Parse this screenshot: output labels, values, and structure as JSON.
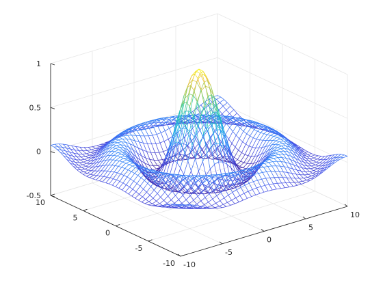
{
  "chart_data": {
    "type": "surface-mesh",
    "function": "sin(r)/r, r = sqrt(x^2 + y^2)",
    "colormap": "parula",
    "grid": true,
    "box": "off",
    "x": {
      "range": [
        -10,
        10
      ],
      "ticks": [
        -10,
        -5,
        0,
        5,
        10
      ],
      "samples": 41
    },
    "y": {
      "range": [
        -10,
        10
      ],
      "ticks": [
        -10,
        -5,
        0,
        5,
        10
      ],
      "samples": 41
    },
    "z": {
      "range": [
        -0.5,
        1
      ],
      "ticks": [
        -0.5,
        0,
        0.5,
        1
      ]
    },
    "tick_labels": {
      "x": [
        "-10",
        "-5",
        "0",
        "5",
        "10"
      ],
      "y": [
        "-10",
        "-5",
        "0",
        "5",
        "10"
      ],
      "z": [
        "-0.5",
        "0",
        "0.5",
        "1"
      ]
    },
    "peak": {
      "x": 0,
      "y": 0,
      "z": 1
    },
    "trough": {
      "r": 4.49,
      "z": -0.217
    }
  },
  "colors": {
    "grid": "#e6e6e6",
    "axis": "#262626",
    "background": "#ffffff"
  }
}
